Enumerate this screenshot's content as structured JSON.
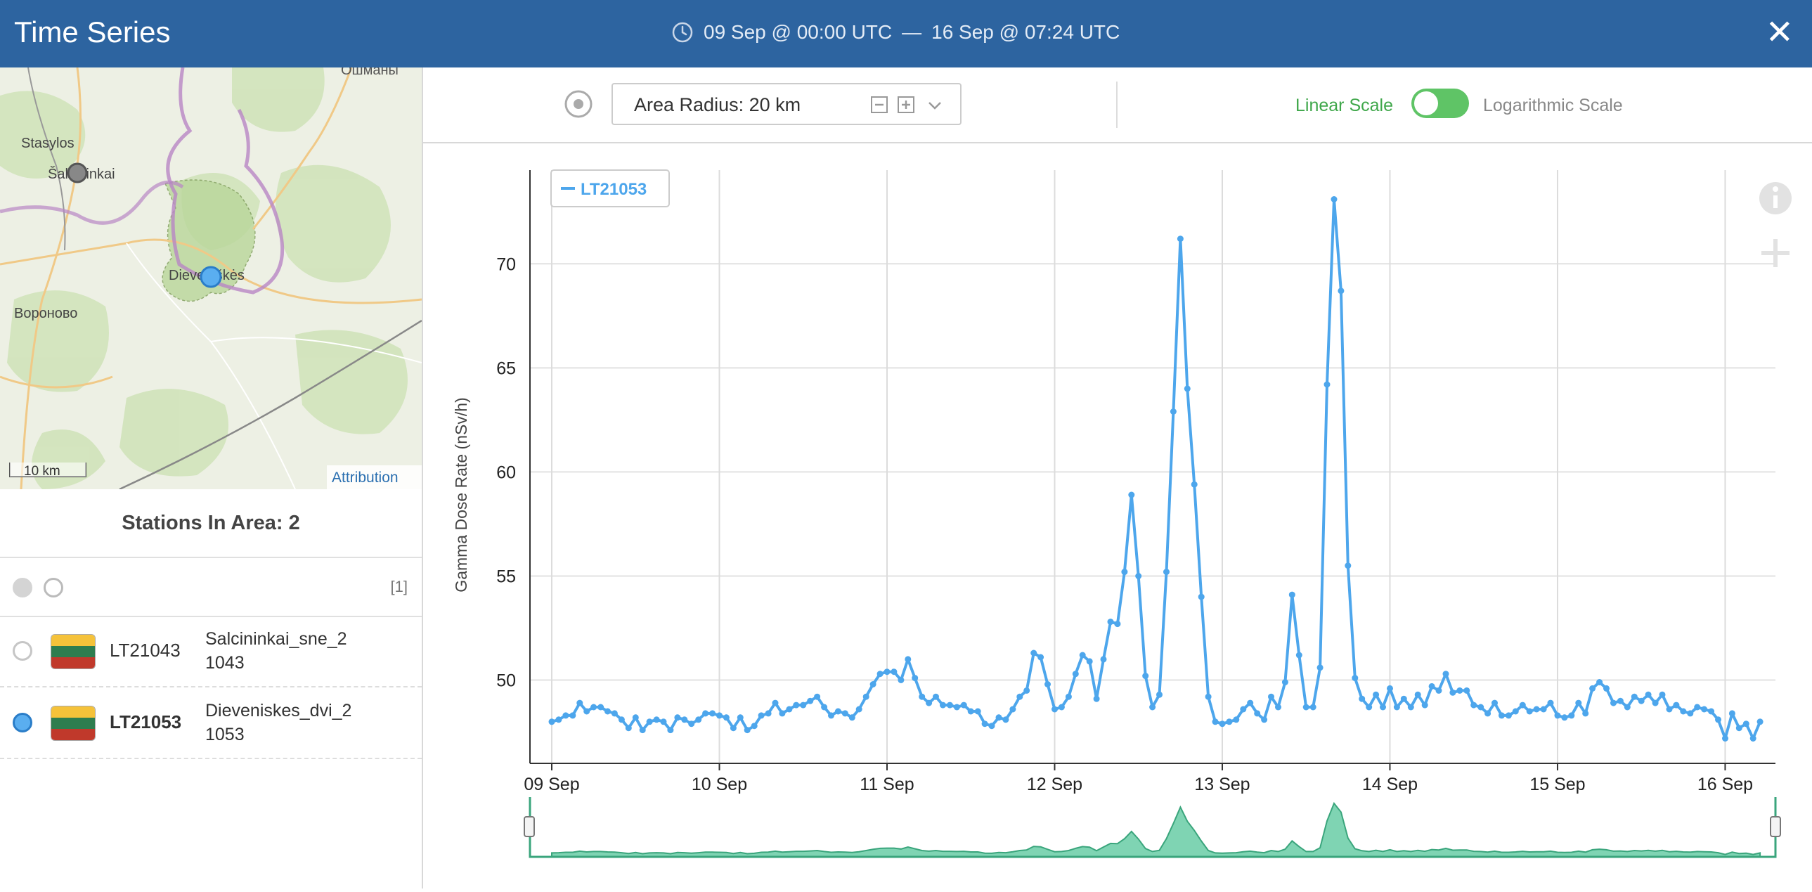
{
  "header": {
    "title": "Time Series",
    "range_start": "09 Sep @ 00:00 UTC",
    "range_sep": "—",
    "range_end": "16 Sep @ 07:24 UTC"
  },
  "map": {
    "labels": [
      {
        "text": "Ошманы"
      },
      {
        "text": "Stasylos"
      },
      {
        "text": "Šalčininkai"
      },
      {
        "text": "Dieveniškės"
      },
      {
        "text": "Вороново"
      }
    ],
    "scale_label": "10 km",
    "attribution": "Attribution"
  },
  "stations": {
    "title": "Stations In Area: 2",
    "selected_count": "[1]",
    "items": [
      {
        "id": "LT21043",
        "name": "Salcininkai_sne_2",
        "code": "1043",
        "selected": false
      },
      {
        "id": "LT21053",
        "name": "Dieveniskes_dvi_2",
        "code": "1053",
        "selected": true
      }
    ],
    "flag_colors": [
      "#f5c23a",
      "#2e7d4f",
      "#c0392b"
    ]
  },
  "toolbar": {
    "radius_label": "Area Radius: 20 km",
    "linear_label": "Linear Scale",
    "log_label": "Logarithmic Scale",
    "scale_mode": "linear"
  },
  "colors": {
    "header": "#2d64a0",
    "series": "#4da6ec",
    "navigator": "#7fd4b3",
    "toggle": "#5fc466"
  },
  "icons": [
    "clock-icon",
    "close-icon",
    "target-icon",
    "minus-icon",
    "plus-icon",
    "chevron-down-icon",
    "info-icon",
    "zoom-plus-icon"
  ],
  "chart_data": {
    "type": "line",
    "ylabel": "Gamma Dose Rate (nSv/h)",
    "xlabel": "",
    "title": "",
    "x_ticks": [
      "09 Sep",
      "10 Sep",
      "11 Sep",
      "12 Sep",
      "13 Sep",
      "14 Sep",
      "15 Sep",
      "16 Sep"
    ],
    "y_ticks": [
      50,
      55,
      60,
      65,
      70
    ],
    "ylim": [
      46.0,
      74.5
    ],
    "xlim_days": [
      -0.13,
      7.3
    ],
    "legend": "top-left",
    "grid": true,
    "series": [
      {
        "name": "LT21053",
        "interval_hours": 1,
        "values": [
          48.0,
          48.1,
          48.3,
          48.3,
          48.9,
          48.5,
          48.7,
          48.7,
          48.5,
          48.4,
          48.1,
          47.7,
          48.2,
          47.6,
          48.0,
          48.1,
          48.0,
          47.6,
          48.2,
          48.1,
          47.9,
          48.1,
          48.4,
          48.4,
          48.3,
          48.2,
          47.7,
          48.2,
          47.6,
          47.8,
          48.3,
          48.4,
          48.9,
          48.4,
          48.6,
          48.8,
          48.8,
          49.0,
          49.2,
          48.7,
          48.3,
          48.5,
          48.4,
          48.2,
          48.6,
          49.2,
          49.8,
          50.3,
          50.4,
          50.4,
          50.0,
          51.0,
          50.1,
          49.2,
          48.9,
          49.2,
          48.8,
          48.8,
          48.7,
          48.8,
          48.5,
          48.5,
          47.9,
          47.8,
          48.2,
          48.1,
          48.6,
          49.2,
          49.5,
          51.3,
          51.1,
          49.8,
          48.6,
          48.7,
          49.2,
          50.3,
          51.2,
          50.9,
          49.1,
          51.0,
          52.8,
          52.7,
          55.2,
          58.9,
          55.0,
          50.2,
          48.7,
          49.3,
          55.2,
          62.9,
          71.2,
          64.0,
          59.4,
          54.0,
          49.2,
          48.0,
          47.9,
          48.0,
          48.1,
          48.6,
          48.9,
          48.4,
          48.1,
          49.2,
          48.7,
          49.9,
          54.1,
          51.2,
          48.7,
          48.7,
          50.6,
          64.2,
          73.1,
          68.7,
          55.5,
          50.1,
          49.1,
          48.7,
          49.3,
          48.7,
          49.6,
          48.7,
          49.1,
          48.7,
          49.3,
          48.8,
          49.7,
          49.5,
          50.3,
          49.4,
          49.5,
          49.5,
          48.8,
          48.7,
          48.4,
          48.9,
          48.3,
          48.3,
          48.5,
          48.8,
          48.5,
          48.6,
          48.6,
          48.9,
          48.3,
          48.2,
          48.3,
          48.9,
          48.4,
          49.6,
          49.9,
          49.6,
          48.9,
          49.0,
          48.7,
          49.2,
          49.0,
          49.3,
          48.9,
          49.3,
          48.6,
          48.8,
          48.5,
          48.4,
          48.7,
          48.6,
          48.5,
          48.1,
          47.2,
          48.4,
          47.7,
          47.9,
          47.2,
          48.0
        ]
      }
    ]
  }
}
